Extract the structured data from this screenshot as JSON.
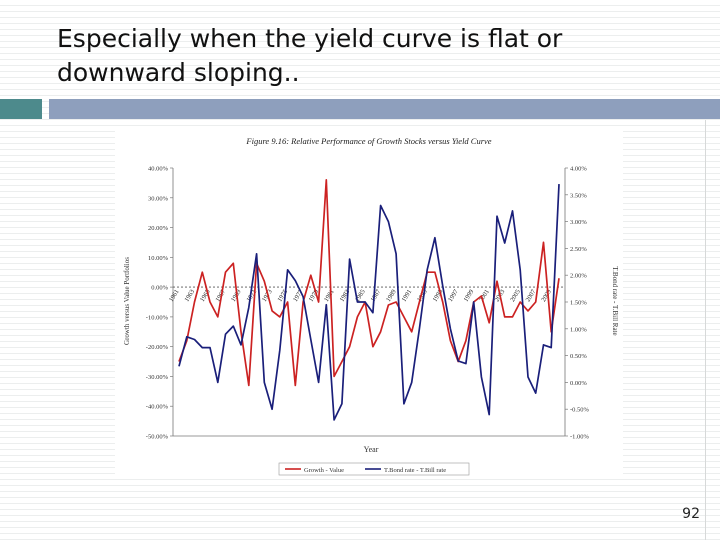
{
  "slide": {
    "title": "Especially when the yield curve is flat or\ndownward sloping..",
    "page_number": "92"
  },
  "colors": {
    "accent_teal": "#4d8a8c",
    "accent_blue": "#8e9fbd",
    "series_red": "#cc2222",
    "series_navy": "#1a1f7a"
  },
  "chart_data": {
    "type": "line",
    "title": "Figure 9.16: Relative Performance of Growth Stocks versus Yield Curve",
    "xlabel": "Year",
    "ylabel_left": "Growth versus Value Portfolios",
    "ylabel_right": "T.Bond rate - T.Bill Rate",
    "x": [
      1961,
      1962,
      1963,
      1964,
      1965,
      1966,
      1967,
      1968,
      1969,
      1970,
      1971,
      1972,
      1973,
      1974,
      1975,
      1976,
      1977,
      1978,
      1979,
      1980,
      1981,
      1982,
      1983,
      1984,
      1985,
      1986,
      1987,
      1988,
      1989,
      1990,
      1991,
      1992,
      1993,
      1994,
      1995,
      1996,
      1997,
      1998,
      1999,
      2000,
      2001,
      2002,
      2003,
      2004,
      2005,
      2006,
      2007,
      2008,
      2009,
      2010
    ],
    "x_tick_labels": [
      "1961",
      "1963",
      "1965",
      "1967",
      "1969",
      "1971",
      "1973",
      "1975",
      "1977",
      "1979",
      "1981",
      "1983",
      "1985",
      "1987",
      "1989",
      "1991",
      "1993",
      "1995",
      "1997",
      "1999",
      "2001",
      "2003",
      "2005",
      "2007",
      "2009"
    ],
    "ylim_left": [
      -50,
      40
    ],
    "yticks_left": [
      "40.00%",
      "30.00%",
      "20.00%",
      "10.00%",
      "0.00%",
      "-10.00%",
      "-20.00%",
      "-30.00%",
      "-40.00%",
      "-50.00%"
    ],
    "ylim_right": [
      -1,
      4
    ],
    "yticks_right": [
      "4.00%",
      "3.50%",
      "3.00%",
      "2.50%",
      "2.00%",
      "1.50%",
      "1.00%",
      "0.50%",
      "0.00%",
      "-0.50%",
      "-1.00%"
    ],
    "grid": false,
    "legend_position": "bottom",
    "series": [
      {
        "name": "Growth - Value",
        "axis": "left",
        "values": [
          -25,
          -18,
          -5,
          5,
          -5,
          -10,
          5,
          8,
          -15,
          -33,
          8,
          2,
          -8,
          -10,
          -5,
          -33,
          -5,
          4,
          -5,
          36,
          -30,
          -25,
          -20,
          -10,
          -5,
          -20,
          -15,
          -6,
          -5,
          -10,
          -15,
          -5,
          5,
          5,
          -5,
          -18,
          -25,
          -18,
          -5,
          -3,
          -12,
          2,
          -10,
          -10,
          -5,
          -8,
          -5,
          15,
          -15,
          3
        ]
      },
      {
        "name": "T.Bond rate - T.Bill rate",
        "axis": "right",
        "values": [
          0.3,
          0.85,
          0.8,
          0.65,
          0.65,
          0,
          0.9,
          1.05,
          0.7,
          1.4,
          2.4,
          0,
          -0.5,
          0.6,
          2.1,
          1.9,
          1.6,
          0.8,
          0,
          1.45,
          -0.7,
          -0.4,
          2.3,
          1.5,
          1.5,
          1.3,
          3.3,
          3,
          2.4,
          -0.4,
          0,
          1.0,
          2.1,
          2.7,
          1.8,
          1.0,
          0.4,
          0.35,
          1.5,
          0.1,
          -0.6,
          3.1,
          2.6,
          3.2,
          2.1,
          0.1,
          -0.2,
          0.7,
          0.65,
          3.7
        ]
      }
    ]
  }
}
